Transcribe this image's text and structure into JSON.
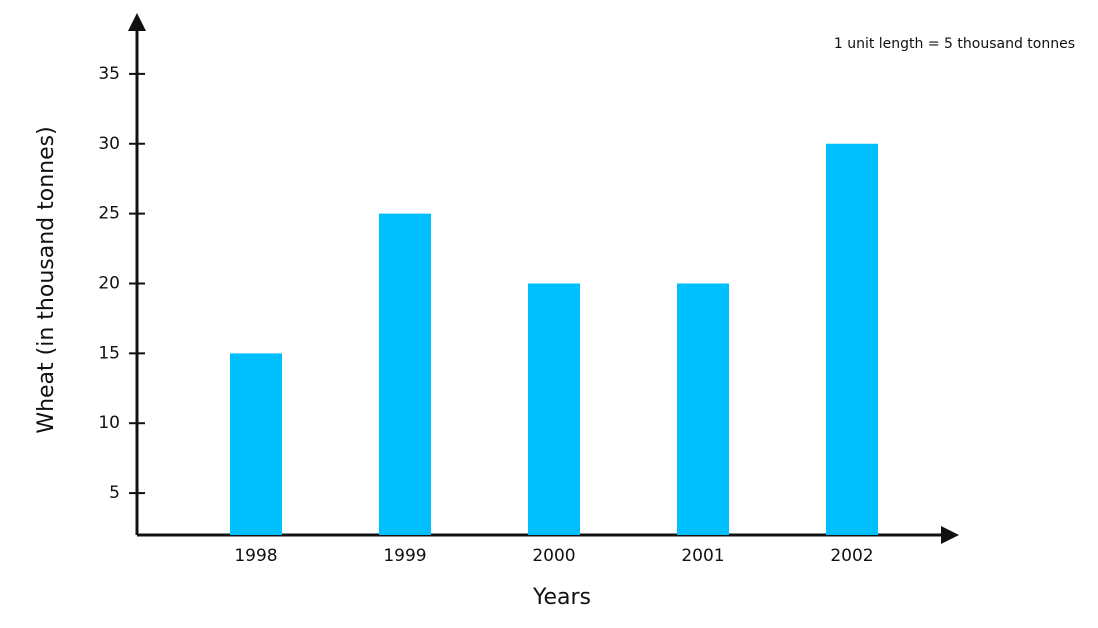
{
  "chart_data": {
    "type": "bar",
    "annotation": "1 unit length = 5 thousand tonnes",
    "x_label": "Years",
    "y_label": "Wheat (in thousand tonnes)",
    "categories": [
      "1998",
      "1999",
      "2000",
      "2001",
      "2002"
    ],
    "values": [
      15,
      25,
      20,
      20,
      30
    ],
    "color": "#00bfff",
    "ylim": [
      2,
      39
    ],
    "yticks": [
      5,
      10,
      15,
      20,
      25,
      30,
      35
    ],
    "grid": false
  }
}
